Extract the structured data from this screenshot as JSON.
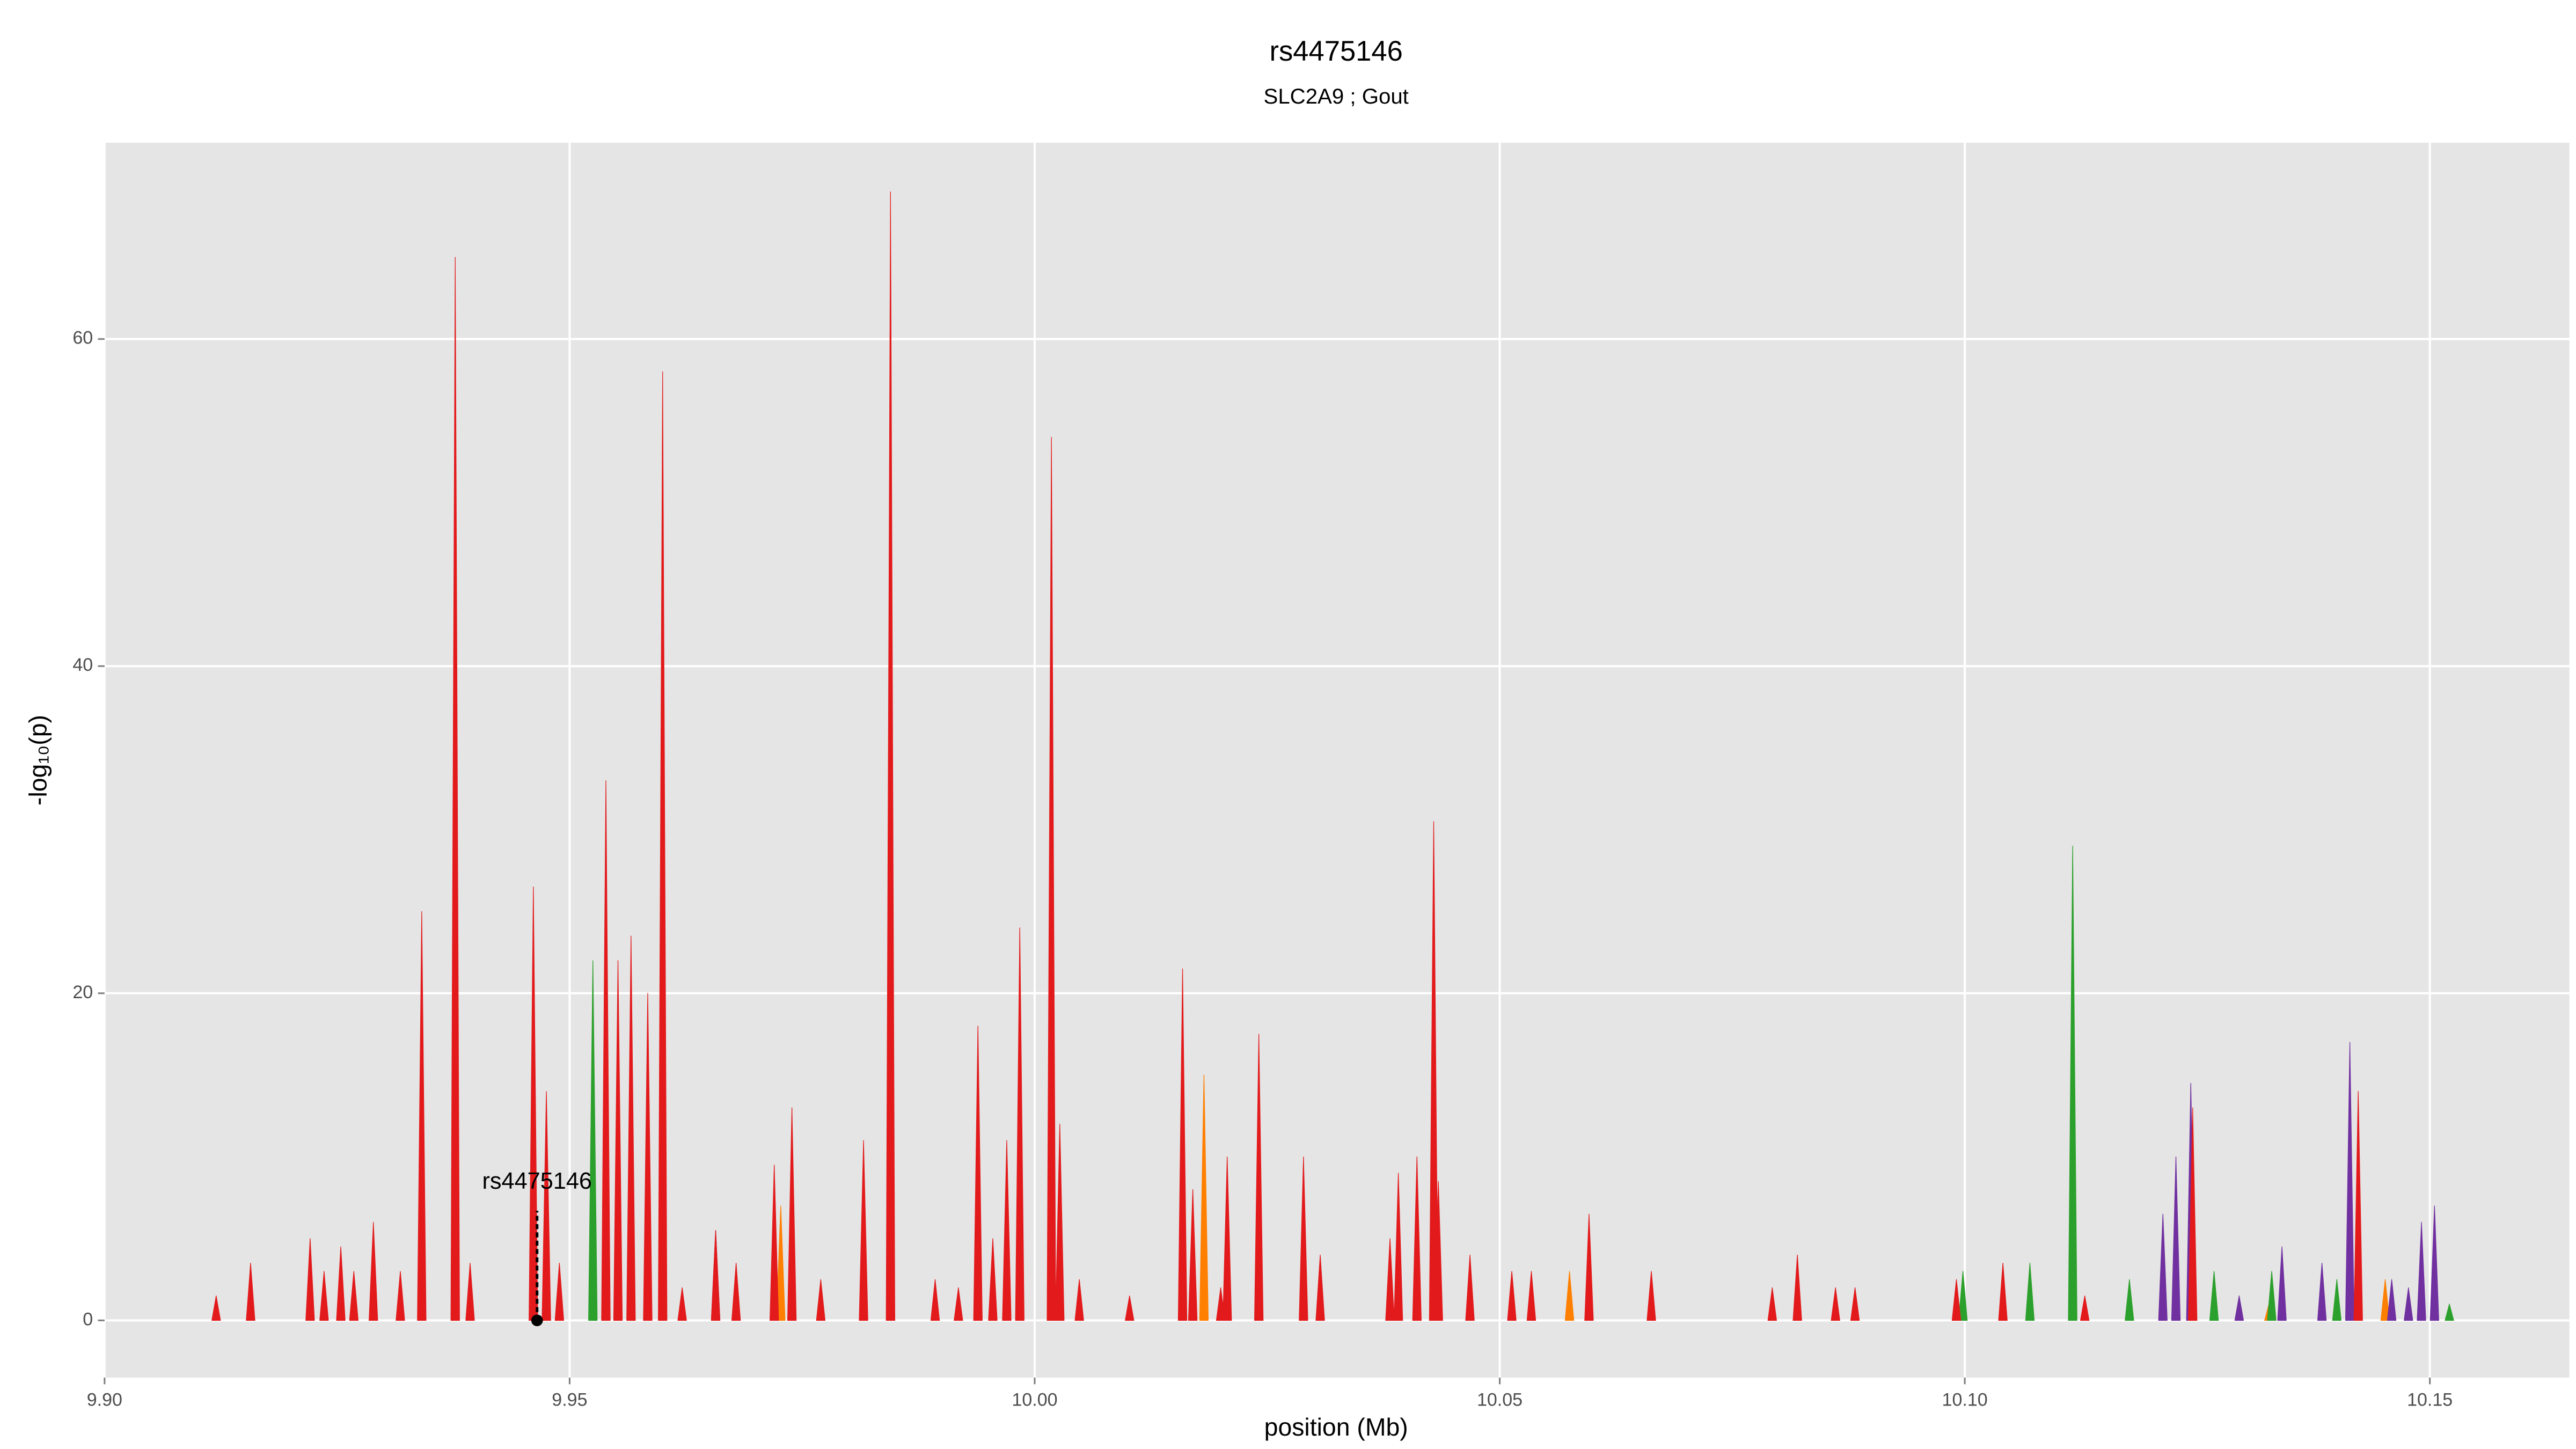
{
  "chart_data": {
    "type": "area",
    "title": "rs4475146",
    "subtitle": "SLC2A9 ; Gout",
    "x_label": "position (Mb)",
    "y_label": "-log₁₀(p)",
    "xlim": [
      9.9,
      10.165
    ],
    "ylim": [
      -3.5,
      72
    ],
    "xticks": [
      {
        "value": 9.9,
        "label": "9.90"
      },
      9.95,
      {
        "value": 10,
        "label": "10.00"
      },
      10.05,
      {
        "value": 10.1,
        "label": "10.10"
      },
      10.15
    ],
    "yticks": [
      0,
      20,
      40,
      60
    ],
    "grid": true,
    "highlight": {
      "label": "rs4475146",
      "x": 9.9465,
      "y": 0
    },
    "series": [
      {
        "name": "orange",
        "color": "#ff7f00",
        "x": [
          9.9727,
          10.0182,
          10.0575,
          10.1327,
          10.1452
        ],
        "values": [
          7,
          15,
          3,
          1,
          2.5
        ]
      },
      {
        "name": "purple",
        "color": "#7030a0",
        "x": [
          9.9657,
          10.1213,
          10.1227,
          10.1243,
          10.1295,
          10.1341,
          10.1384,
          10.1414,
          10.1459,
          10.1477,
          10.1491,
          10.1505
        ],
        "values": [
          5.5,
          6.5,
          10,
          14.5,
          1.5,
          4.5,
          3.5,
          17,
          2.5,
          2,
          6,
          7
        ]
      },
      {
        "name": "green",
        "color": "#2ca02c",
        "x": [
          9.9525,
          10.0998,
          10.107,
          10.1116,
          10.1177,
          10.1268,
          10.133,
          10.14,
          10.1521
        ],
        "values": [
          22,
          3,
          3.5,
          29,
          2.5,
          3,
          3,
          2.5,
          1
        ]
      },
      {
        "name": "red",
        "color": "#e31a1c",
        "x": [
          9.912,
          9.9157,
          9.9221,
          9.9236,
          9.9254,
          9.9268,
          9.9289,
          9.9318,
          9.9341,
          9.9377,
          9.9393,
          9.9461,
          9.9475,
          9.9489,
          9.9539,
          9.9552,
          9.9566,
          9.9584,
          9.96,
          9.9621,
          9.9657,
          9.9679,
          9.972,
          9.9739,
          9.977,
          9.9816,
          9.9845,
          9.9893,
          9.9918,
          9.9939,
          9.9955,
          9.997,
          9.9984,
          10.0018,
          10.0027,
          10.0048,
          10.0102,
          10.0159,
          10.017,
          10.02,
          10.0207,
          10.0241,
          10.0289,
          10.0307,
          10.0382,
          10.0391,
          10.0411,
          10.0429,
          10.0434,
          10.0468,
          10.0513,
          10.0534,
          10.0596,
          10.0663,
          10.0793,
          10.082,
          10.0861,
          10.0882,
          10.0991,
          10.1041,
          10.1129,
          10.1245,
          10.1423
        ],
        "values": [
          1.5,
          3.5,
          5,
          3,
          4.5,
          3,
          6,
          3,
          25,
          65,
          3.5,
          26.5,
          14,
          3.5,
          33,
          22,
          23.5,
          20,
          58,
          2,
          5.5,
          3.5,
          9.5,
          13,
          2.5,
          11,
          69,
          2.5,
          2,
          18,
          5,
          11,
          24,
          54,
          12,
          2.5,
          1.5,
          21.5,
          8,
          2,
          10,
          17.5,
          10,
          4,
          5,
          9,
          10,
          30.5,
          8.5,
          4,
          3,
          3,
          6.5,
          3,
          2,
          4,
          2,
          2,
          2.5,
          3.5,
          1.5,
          13,
          14
        ]
      }
    ]
  }
}
